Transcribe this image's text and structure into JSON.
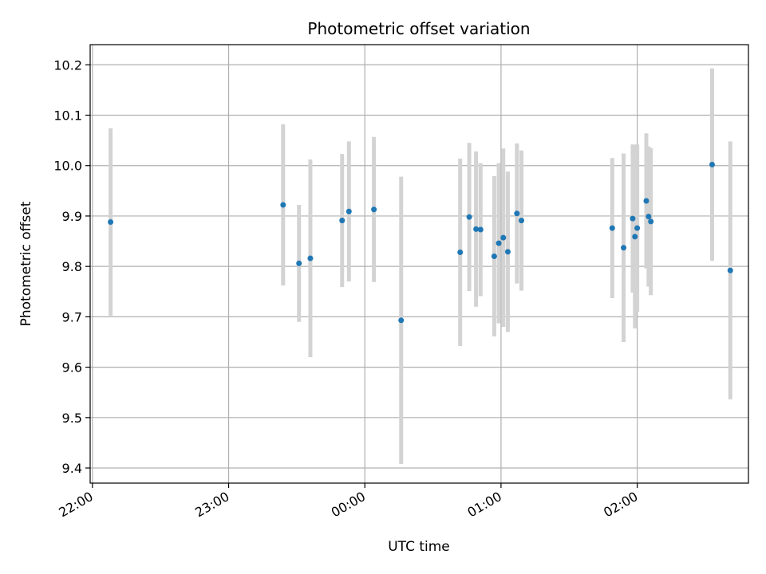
{
  "chart_data": {
    "type": "scatter",
    "title": "Photometric offset variation",
    "xlabel": "UTC time",
    "ylabel": "Photometric offset",
    "grid": true,
    "xlim": [
      "21:59",
      "02:49"
    ],
    "ylim": [
      9.37,
      10.24
    ],
    "x_ticks": [
      "22:00",
      "23:00",
      "00:00",
      "01:00",
      "02:00"
    ],
    "y_ticks": [
      "9.4",
      "9.5",
      "9.6",
      "9.7",
      "9.8",
      "9.9",
      "10.0",
      "10.1",
      "10.2"
    ],
    "colors": {
      "point": "#1f77b4",
      "errorbar": "#d3d3d3",
      "grid": "#b0b0b0"
    },
    "points": [
      {
        "x": "22:08",
        "y": 9.888,
        "yerr": 0.186
      },
      {
        "x": "23:24",
        "y": 9.922,
        "yerr": 0.16
      },
      {
        "x": "23:31",
        "y": 9.806,
        "yerr": 0.116
      },
      {
        "x": "23:36",
        "y": 9.816,
        "yerr": 0.196
      },
      {
        "x": "23:50",
        "y": 9.891,
        "yerr": 0.132
      },
      {
        "x": "23:53",
        "y": 9.909,
        "yerr": 0.139
      },
      {
        "x": "00:04",
        "y": 9.913,
        "yerr": 0.144
      },
      {
        "x": "00:16",
        "y": 9.693,
        "yerr": 0.285
      },
      {
        "x": "00:42",
        "y": 9.828,
        "yerr": 0.186
      },
      {
        "x": "00:46",
        "y": 9.898,
        "yerr": 0.147
      },
      {
        "x": "00:49",
        "y": 9.874,
        "yerr": 0.154
      },
      {
        "x": "00:51",
        "y": 9.873,
        "yerr": 0.132
      },
      {
        "x": "00:57",
        "y": 9.82,
        "yerr": 0.159
      },
      {
        "x": "00:59",
        "y": 9.846,
        "yerr": 0.159
      },
      {
        "x": "01:01",
        "y": 9.857,
        "yerr": 0.177
      },
      {
        "x": "01:03",
        "y": 9.829,
        "yerr": 0.159
      },
      {
        "x": "01:07",
        "y": 9.905,
        "yerr": 0.139
      },
      {
        "x": "01:09",
        "y": 9.891,
        "yerr": 0.139
      },
      {
        "x": "01:49",
        "y": 9.876,
        "yerr": 0.139
      },
      {
        "x": "01:54",
        "y": 9.837,
        "yerr": 0.187
      },
      {
        "x": "01:58",
        "y": 9.895,
        "yerr": 0.147
      },
      {
        "x": "01:59",
        "y": 9.859,
        "yerr": 0.182
      },
      {
        "x": "02:00",
        "y": 9.876,
        "yerr": 0.166
      },
      {
        "x": "02:04",
        "y": 9.93,
        "yerr": 0.134
      },
      {
        "x": "02:05",
        "y": 9.899,
        "yerr": 0.139
      },
      {
        "x": "02:06",
        "y": 9.889,
        "yerr": 0.146
      },
      {
        "x": "02:33",
        "y": 10.002,
        "yerr": 0.191
      },
      {
        "x": "02:41",
        "y": 9.792,
        "yerr": 0.256
      }
    ]
  }
}
